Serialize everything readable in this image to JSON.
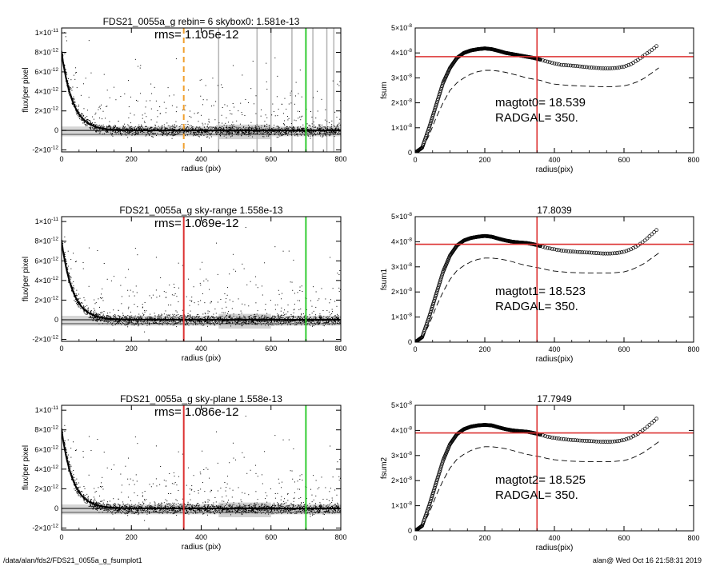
{
  "chart_data": [
    {
      "type": "scatter",
      "panel": "profile",
      "title": "FDS21_0055a_g rebin= 6    skybox0:  1.581e-13",
      "annotation": "rms= 1.105e-12",
      "xlabel": "radius (pix)",
      "ylabel": "flux/per pixel",
      "xlim": [
        0,
        800
      ],
      "ylim": [
        -2.2e-12,
        1.05e-11
      ],
      "xticks": [
        0,
        200,
        400,
        600,
        800
      ],
      "yticks": [
        {
          "value": 1e-11,
          "mant": "1×10",
          "exp": "-11"
        },
        {
          "value": 8e-12,
          "mant": "8×10",
          "exp": "-12"
        },
        {
          "value": 6e-12,
          "mant": "6×10",
          "exp": "-12"
        },
        {
          "value": 4e-12,
          "mant": "4×10",
          "exp": "-12"
        },
        {
          "value": 2e-12,
          "mant": "2×10",
          "exp": "-12"
        },
        {
          "value": 0,
          "mant": "0",
          "exp": ""
        },
        {
          "value": -2e-12,
          "mant": "-2×10",
          "exp": "-12"
        }
      ],
      "profile_peak": 8e-12,
      "profile_scale": 32,
      "scatter_noise": 1.105e-12,
      "vlines": [
        {
          "x": 350,
          "color": "#f0a030",
          "style": "dashed"
        },
        {
          "x": 700,
          "color": "#33cc33",
          "style": "solid"
        }
      ],
      "gray_band": {
        "from": 4e-13,
        "to": -6e-13
      },
      "series": [
        {
          "values": "radial flux profile"
        }
      ]
    },
    {
      "type": "line",
      "panel": "growth",
      "title": "",
      "annotation": [
        "magtot0=  18.539",
        "RADGAL=    350."
      ],
      "xlabel": "radius(pix)",
      "ylabel": "fsum",
      "xlim": [
        0,
        800
      ],
      "ylim": [
        0,
        5e-08
      ],
      "xticks": [
        0,
        200,
        400,
        600,
        800
      ],
      "yticks": [
        {
          "value": 5e-08,
          "mant": "5×10",
          "exp": "-8"
        },
        {
          "value": 4e-08,
          "mant": "4×10",
          "exp": "-8"
        },
        {
          "value": 3e-08,
          "mant": "3×10",
          "exp": "-8"
        },
        {
          "value": 2e-08,
          "mant": "2×10",
          "exp": "-8"
        },
        {
          "value": 1e-08,
          "mant": "1×10",
          "exp": "-8"
        },
        {
          "value": 0,
          "mant": "0",
          "exp": ""
        }
      ],
      "hline": 3.85e-08,
      "vline": 350,
      "curve": [
        [
          0,
          0
        ],
        [
          20,
          0.2
        ],
        [
          40,
          1.0
        ],
        [
          60,
          1.9
        ],
        [
          80,
          2.8
        ],
        [
          100,
          3.4
        ],
        [
          120,
          3.8
        ],
        [
          140,
          4.0
        ],
        [
          160,
          4.1
        ],
        [
          180,
          4.15
        ],
        [
          200,
          4.18
        ],
        [
          220,
          4.15
        ],
        [
          240,
          4.08
        ],
        [
          260,
          4.0
        ],
        [
          280,
          3.95
        ],
        [
          300,
          3.9
        ],
        [
          320,
          3.85
        ],
        [
          340,
          3.8
        ],
        [
          360,
          3.73
        ],
        [
          380,
          3.65
        ],
        [
          400,
          3.58
        ],
        [
          420,
          3.52
        ],
        [
          440,
          3.5
        ],
        [
          460,
          3.48
        ],
        [
          480,
          3.45
        ],
        [
          500,
          3.42
        ],
        [
          520,
          3.4
        ],
        [
          540,
          3.38
        ],
        [
          560,
          3.38
        ],
        [
          580,
          3.4
        ],
        [
          600,
          3.45
        ],
        [
          620,
          3.55
        ],
        [
          640,
          3.72
        ],
        [
          660,
          3.92
        ],
        [
          680,
          4.12
        ],
        [
          700,
          4.35
        ]
      ],
      "dashed": [
        [
          0,
          0
        ],
        [
          20,
          0.15
        ],
        [
          40,
          0.7
        ],
        [
          60,
          1.4
        ],
        [
          80,
          2.0
        ],
        [
          100,
          2.5
        ],
        [
          120,
          2.8
        ],
        [
          140,
          3.0
        ],
        [
          160,
          3.15
        ],
        [
          180,
          3.25
        ],
        [
          200,
          3.3
        ],
        [
          220,
          3.3
        ],
        [
          240,
          3.27
        ],
        [
          260,
          3.22
        ],
        [
          280,
          3.15
        ],
        [
          300,
          3.08
        ],
        [
          320,
          3.0
        ],
        [
          340,
          2.95
        ],
        [
          360,
          2.9
        ],
        [
          380,
          2.8
        ],
        [
          400,
          2.75
        ],
        [
          440,
          2.7
        ],
        [
          480,
          2.67
        ],
        [
          520,
          2.65
        ],
        [
          560,
          2.64
        ],
        [
          600,
          2.68
        ],
        [
          620,
          2.75
        ],
        [
          640,
          2.85
        ],
        [
          660,
          3.0
        ],
        [
          680,
          3.2
        ],
        [
          700,
          3.4
        ]
      ]
    },
    {
      "type": "scatter",
      "panel": "profile",
      "title": "FDS21_0055a_g sky-range  1.558e-13",
      "annotation": "rms= 1.069e-12",
      "xlabel": "radius (pix)",
      "ylabel": "flux/per pixel",
      "xlim": [
        0,
        800
      ],
      "ylim": [
        -2.2e-12,
        1.05e-11
      ],
      "xticks": [
        0,
        200,
        400,
        600,
        800
      ],
      "yticks": [
        {
          "value": 1e-11,
          "mant": "1×10",
          "exp": "-11"
        },
        {
          "value": 8e-12,
          "mant": "8×10",
          "exp": "-12"
        },
        {
          "value": 6e-12,
          "mant": "6×10",
          "exp": "-12"
        },
        {
          "value": 4e-12,
          "mant": "4×10",
          "exp": "-12"
        },
        {
          "value": 2e-12,
          "mant": "2×10",
          "exp": "-12"
        },
        {
          "value": 0,
          "mant": "0",
          "exp": ""
        },
        {
          "value": -2e-12,
          "mant": "-2×10",
          "exp": "-12"
        }
      ],
      "profile_peak": 8e-12,
      "profile_scale": 32,
      "scatter_noise": 1.069e-12,
      "vlines": [
        {
          "x": 350,
          "color": "#dd3333",
          "style": "solid"
        },
        {
          "x": 700,
          "color": "#33cc33",
          "style": "solid"
        }
      ],
      "gray_band": {
        "from": 4e-13,
        "to": -6e-13
      },
      "series": [
        {
          "values": "radial flux profile"
        }
      ]
    },
    {
      "type": "line",
      "panel": "growth",
      "title": "17.8039",
      "annotation": [
        "magtot1=  18.523",
        "RADGAL=    350."
      ],
      "xlabel": "radius(pix)",
      "ylabel": "fsum1",
      "xlim": [
        0,
        800
      ],
      "ylim": [
        0,
        5e-08
      ],
      "xticks": [
        0,
        200,
        400,
        600,
        800
      ],
      "yticks": [
        {
          "value": 5e-08,
          "mant": "5×10",
          "exp": "-8"
        },
        {
          "value": 4e-08,
          "mant": "4×10",
          "exp": "-8"
        },
        {
          "value": 3e-08,
          "mant": "3×10",
          "exp": "-8"
        },
        {
          "value": 2e-08,
          "mant": "2×10",
          "exp": "-8"
        },
        {
          "value": 1e-08,
          "mant": "1×10",
          "exp": "-8"
        },
        {
          "value": 0,
          "mant": "0",
          "exp": ""
        }
      ],
      "hline": 3.9e-08,
      "vline": 350,
      "curve": [
        [
          0,
          0
        ],
        [
          20,
          0.2
        ],
        [
          40,
          1.0
        ],
        [
          60,
          1.9
        ],
        [
          80,
          2.8
        ],
        [
          100,
          3.45
        ],
        [
          120,
          3.85
        ],
        [
          140,
          4.05
        ],
        [
          160,
          4.15
        ],
        [
          180,
          4.2
        ],
        [
          200,
          4.23
        ],
        [
          220,
          4.2
        ],
        [
          240,
          4.12
        ],
        [
          260,
          4.05
        ],
        [
          280,
          4.0
        ],
        [
          300,
          3.97
        ],
        [
          320,
          3.95
        ],
        [
          340,
          3.9
        ],
        [
          360,
          3.83
        ],
        [
          380,
          3.75
        ],
        [
          400,
          3.7
        ],
        [
          420,
          3.65
        ],
        [
          440,
          3.62
        ],
        [
          460,
          3.6
        ],
        [
          480,
          3.58
        ],
        [
          500,
          3.57
        ],
        [
          520,
          3.55
        ],
        [
          540,
          3.53
        ],
        [
          560,
          3.53
        ],
        [
          580,
          3.55
        ],
        [
          600,
          3.6
        ],
        [
          620,
          3.7
        ],
        [
          640,
          3.85
        ],
        [
          660,
          4.05
        ],
        [
          680,
          4.3
        ],
        [
          700,
          4.55
        ]
      ],
      "dashed": [
        [
          0,
          0
        ],
        [
          20,
          0.15
        ],
        [
          40,
          0.7
        ],
        [
          60,
          1.4
        ],
        [
          80,
          2.0
        ],
        [
          100,
          2.5
        ],
        [
          120,
          2.85
        ],
        [
          140,
          3.05
        ],
        [
          160,
          3.2
        ],
        [
          180,
          3.3
        ],
        [
          200,
          3.35
        ],
        [
          220,
          3.35
        ],
        [
          240,
          3.32
        ],
        [
          260,
          3.27
        ],
        [
          280,
          3.2
        ],
        [
          300,
          3.12
        ],
        [
          320,
          3.05
        ],
        [
          340,
          3.0
        ],
        [
          360,
          2.95
        ],
        [
          380,
          2.88
        ],
        [
          400,
          2.83
        ],
        [
          440,
          2.78
        ],
        [
          480,
          2.76
        ],
        [
          520,
          2.75
        ],
        [
          560,
          2.75
        ],
        [
          600,
          2.8
        ],
        [
          620,
          2.88
        ],
        [
          640,
          3.0
        ],
        [
          660,
          3.15
        ],
        [
          680,
          3.35
        ],
        [
          700,
          3.55
        ]
      ]
    },
    {
      "type": "scatter",
      "panel": "profile",
      "title": "FDS21_0055a_g sky-plane  1.558e-13",
      "annotation": "rms= 1.086e-12",
      "xlabel": "radius (pix)",
      "ylabel": "flux/per pixel",
      "xlim": [
        0,
        800
      ],
      "ylim": [
        -2.2e-12,
        1.05e-11
      ],
      "xticks": [
        0,
        200,
        400,
        600,
        800
      ],
      "yticks": [
        {
          "value": 1e-11,
          "mant": "1×10",
          "exp": "-11"
        },
        {
          "value": 8e-12,
          "mant": "8×10",
          "exp": "-12"
        },
        {
          "value": 6e-12,
          "mant": "6×10",
          "exp": "-12"
        },
        {
          "value": 4e-12,
          "mant": "4×10",
          "exp": "-12"
        },
        {
          "value": 2e-12,
          "mant": "2×10",
          "exp": "-12"
        },
        {
          "value": 0,
          "mant": "0",
          "exp": ""
        },
        {
          "value": -2e-12,
          "mant": "-2×10",
          "exp": "-12"
        }
      ],
      "profile_peak": 8e-12,
      "profile_scale": 32,
      "scatter_noise": 1.086e-12,
      "vlines": [
        {
          "x": 350,
          "color": "#dd3333",
          "style": "solid"
        },
        {
          "x": 700,
          "color": "#33cc33",
          "style": "solid"
        }
      ],
      "gray_band": {
        "from": 4e-13,
        "to": -6e-13
      },
      "series": [
        {
          "values": "radial flux profile"
        }
      ]
    },
    {
      "type": "line",
      "panel": "growth",
      "title": "17.7949",
      "annotation": [
        "magtot2=  18.525",
        "RADGAL=    350."
      ],
      "xlabel": "radius(pix)",
      "ylabel": "fsum2",
      "xlim": [
        0,
        800
      ],
      "ylim": [
        0,
        5e-08
      ],
      "xticks": [
        0,
        200,
        400,
        600,
        800
      ],
      "yticks": [
        {
          "value": 5e-08,
          "mant": "5×10",
          "exp": "-8"
        },
        {
          "value": 4e-08,
          "mant": "4×10",
          "exp": "-8"
        },
        {
          "value": 3e-08,
          "mant": "3×10",
          "exp": "-8"
        },
        {
          "value": 2e-08,
          "mant": "2×10",
          "exp": "-8"
        },
        {
          "value": 1e-08,
          "mant": "1×10",
          "exp": "-8"
        },
        {
          "value": 0,
          "mant": "0",
          "exp": ""
        }
      ],
      "hline": 3.9e-08,
      "vline": 350,
      "curve": [
        [
          0,
          0
        ],
        [
          20,
          0.2
        ],
        [
          40,
          1.0
        ],
        [
          60,
          1.9
        ],
        [
          80,
          2.8
        ],
        [
          100,
          3.45
        ],
        [
          120,
          3.85
        ],
        [
          140,
          4.05
        ],
        [
          160,
          4.15
        ],
        [
          180,
          4.2
        ],
        [
          200,
          4.22
        ],
        [
          220,
          4.2
        ],
        [
          240,
          4.12
        ],
        [
          260,
          4.05
        ],
        [
          280,
          4.0
        ],
        [
          300,
          3.97
        ],
        [
          320,
          3.95
        ],
        [
          340,
          3.9
        ],
        [
          360,
          3.83
        ],
        [
          380,
          3.75
        ],
        [
          400,
          3.7
        ],
        [
          420,
          3.66
        ],
        [
          440,
          3.63
        ],
        [
          460,
          3.61
        ],
        [
          480,
          3.59
        ],
        [
          500,
          3.58
        ],
        [
          520,
          3.56
        ],
        [
          540,
          3.55
        ],
        [
          560,
          3.55
        ],
        [
          580,
          3.57
        ],
        [
          600,
          3.62
        ],
        [
          620,
          3.72
        ],
        [
          640,
          3.87
        ],
        [
          660,
          4.07
        ],
        [
          680,
          4.3
        ],
        [
          700,
          4.55
        ]
      ],
      "dashed": [
        [
          0,
          0
        ],
        [
          20,
          0.15
        ],
        [
          40,
          0.7
        ],
        [
          60,
          1.4
        ],
        [
          80,
          2.0
        ],
        [
          100,
          2.5
        ],
        [
          120,
          2.85
        ],
        [
          140,
          3.05
        ],
        [
          160,
          3.2
        ],
        [
          180,
          3.3
        ],
        [
          200,
          3.35
        ],
        [
          220,
          3.35
        ],
        [
          240,
          3.32
        ],
        [
          260,
          3.27
        ],
        [
          280,
          3.2
        ],
        [
          300,
          3.12
        ],
        [
          320,
          3.05
        ],
        [
          340,
          3.0
        ],
        [
          360,
          2.95
        ],
        [
          380,
          2.88
        ],
        [
          400,
          2.83
        ],
        [
          440,
          2.78
        ],
        [
          480,
          2.76
        ],
        [
          520,
          2.75
        ],
        [
          560,
          2.75
        ],
        [
          600,
          2.8
        ],
        [
          620,
          2.88
        ],
        [
          640,
          3.0
        ],
        [
          660,
          3.15
        ],
        [
          680,
          3.35
        ],
        [
          700,
          3.55
        ]
      ]
    }
  ],
  "footer": {
    "path": "/data/alan/fds2/FDS21_0055a_g_fsumplot1",
    "stamp": "alan@  Wed Oct 16 21:58:31 2019"
  },
  "colors": {
    "axis": "#000000",
    "points": "#000000",
    "sky_gray": "#b4b4b4",
    "red_line": "#dd3333",
    "green_line": "#33cc33",
    "orange_line": "#f0a030"
  }
}
